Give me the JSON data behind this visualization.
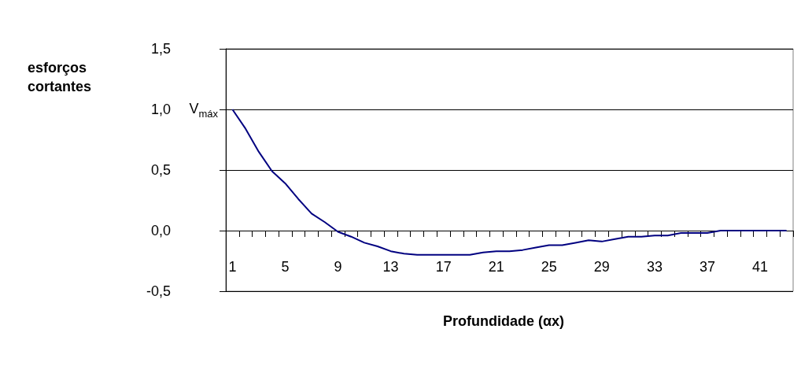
{
  "chart_data": {
    "type": "line",
    "xlabel": "Profundidade (αx)",
    "ylabel": "esforços cortantes",
    "categories": [
      "1",
      null,
      null,
      null,
      "5",
      null,
      null,
      null,
      "9",
      null,
      null,
      null,
      "13",
      null,
      null,
      null,
      "17",
      null,
      null,
      null,
      "21",
      null,
      null,
      null,
      "25",
      null,
      null,
      null,
      "29",
      null,
      null,
      null,
      "33",
      null,
      null,
      null,
      "37",
      null,
      null,
      null,
      "41",
      null,
      null
    ],
    "series": [
      {
        "color": "#000080",
        "values": [
          1.0,
          0.84,
          0.65,
          0.49,
          0.39,
          0.26,
          0.14,
          0.07,
          -0.01,
          -0.05,
          -0.1,
          -0.13,
          -0.17,
          -0.19,
          -0.2,
          -0.2,
          -0.2,
          -0.2,
          -0.2,
          -0.18,
          -0.17,
          -0.17,
          -0.16,
          -0.14,
          -0.12,
          -0.12,
          -0.1,
          -0.08,
          -0.09,
          -0.07,
          -0.05,
          -0.05,
          -0.04,
          -0.04,
          -0.02,
          -0.02,
          -0.02,
          0.0,
          0.0,
          0.0,
          0.0,
          0.0,
          0.0
        ]
      }
    ],
    "ylim": [
      -0.5,
      1.5
    ],
    "yticks": [
      {
        "value": -0.5,
        "label": "-0,5"
      },
      {
        "value": 0,
        "label": "0,0"
      },
      {
        "value": 0.5,
        "label": "0,5"
      },
      {
        "value": 1.0,
        "label": "1,0"
      },
      {
        "value": 1.5,
        "label": "1,5"
      }
    ],
    "grid": "y",
    "marker": "none",
    "line_style": "solid",
    "annotations": [
      {
        "text": "V$_{máx}$",
        "x": "1",
        "y": 1.0
      }
    ]
  }
}
